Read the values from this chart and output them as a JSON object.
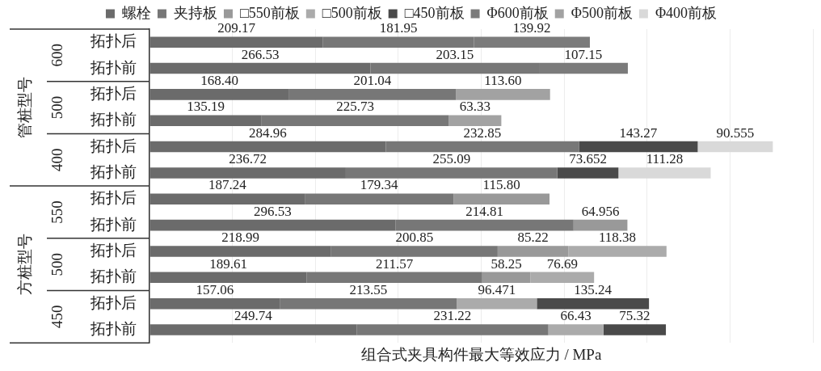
{
  "chart_data": {
    "type": "bar",
    "orientation": "horizontal",
    "stacked": true,
    "legend": "top",
    "grid": "x",
    "tick_labels": "y",
    "xlabel": "组合式夹具构件最大等效应力 / MPa",
    "categories": [
      "拓扑后",
      "拓扑前",
      "拓扑后",
      "拓扑前",
      "拓扑后",
      "拓扑前",
      "拓扑后",
      "拓扑前",
      "拓扑后",
      "拓扑前",
      "拓扑后",
      "拓扑前"
    ],
    "annotations": [
      "600",
      "500",
      "400",
      "550",
      "500",
      "450",
      "管桩型号",
      "方桩型号"
    ],
    "xlim": [
      0,
      800
    ],
    "xticks": [
      {
        "value": 0,
        "label": null
      },
      {
        "value": 100,
        "label": null
      },
      {
        "value": 200,
        "label": null
      },
      {
        "value": 300,
        "label": null
      },
      {
        "value": 400,
        "label": null
      },
      {
        "value": 500,
        "label": null
      },
      {
        "value": 600,
        "label": null
      },
      {
        "value": 700,
        "label": null
      },
      {
        "value": 800,
        "label": null
      }
    ],
    "series": [
      {
        "name": "螺栓",
        "color": "#6b6b6b",
        "values": [
          209.17,
          266.53,
          168.4,
          135.19,
          284.96,
          236.72,
          187.24,
          296.53,
          218.99,
          189.61,
          157.06,
          249.74
        ],
        "value_labels": [
          "209.17",
          "266.53",
          "168.40",
          "135.19",
          "284.96",
          "236.72",
          "187.24",
          "296.53",
          "218.99",
          "189.61",
          "157.06",
          "249.74"
        ]
      },
      {
        "name": "夹持板",
        "color": "#777777",
        "values": [
          181.95,
          203.15,
          201.04,
          225.73,
          232.85,
          255.09,
          179.34,
          214.81,
          200.85,
          211.57,
          213.55,
          231.22
        ],
        "value_labels": [
          "181.95",
          "203.15",
          "201.04",
          "225.73",
          "232.85",
          "255.09",
          "179.34",
          "214.81",
          "200.85",
          "211.57",
          "213.55",
          "231.22"
        ]
      },
      {
        "name": "□550前板",
        "color": "#999999",
        "values": [
          null,
          null,
          null,
          null,
          null,
          null,
          115.8,
          64.956,
          85.22,
          58.25,
          null,
          null
        ],
        "value_labels": [
          null,
          null,
          null,
          null,
          null,
          null,
          "115.80",
          "64.956",
          "85.22",
          "58.25",
          null,
          null
        ]
      },
      {
        "name": "□500前板",
        "color": "#ababab",
        "values": [
          null,
          null,
          null,
          null,
          null,
          null,
          null,
          null,
          118.38,
          76.69,
          96.471,
          66.43
        ],
        "value_labels": [
          null,
          null,
          null,
          null,
          null,
          null,
          null,
          null,
          "118.38",
          "76.69",
          "96.471",
          "66.43"
        ]
      },
      {
        "name": "□450前板",
        "color": "#4a4a4a",
        "values": [
          null,
          null,
          null,
          null,
          143.27,
          73.652,
          null,
          null,
          null,
          null,
          135.24,
          75.32
        ],
        "value_labels": [
          null,
          null,
          null,
          null,
          "143.27",
          "73.652",
          null,
          null,
          null,
          null,
          "135.24",
          "75.32"
        ]
      },
      {
        "name": "Φ600前板",
        "color": "#7b7b7b",
        "values": [
          139.92,
          107.15,
          null,
          null,
          null,
          null,
          null,
          null,
          null,
          null,
          null,
          null
        ],
        "value_labels": [
          "139.92",
          "107.15",
          null,
          null,
          null,
          null,
          null,
          null,
          null,
          null,
          null,
          null
        ]
      },
      {
        "name": "Φ500前板",
        "color": "#a2a2a2",
        "values": [
          null,
          null,
          113.6,
          63.33,
          null,
          null,
          null,
          null,
          null,
          null,
          null,
          null
        ],
        "value_labels": [
          null,
          null,
          "113.60",
          "63.33",
          null,
          null,
          null,
          null,
          null,
          null,
          null,
          null
        ]
      },
      {
        "name": "Φ400前板",
        "color": "#d9d9d9",
        "values": [
          null,
          null,
          null,
          null,
          90.555,
          111.28,
          null,
          null,
          null,
          null,
          null,
          null
        ],
        "value_labels": [
          null,
          null,
          null,
          null,
          "90.555",
          "111.28",
          null,
          null,
          null,
          null,
          null,
          null
        ]
      }
    ]
  }
}
